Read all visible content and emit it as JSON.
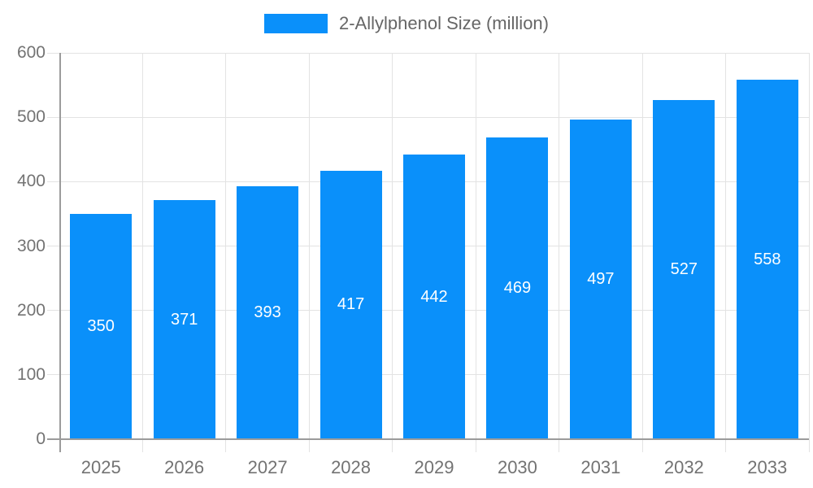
{
  "chart_data": {
    "type": "bar",
    "title": "",
    "legend": "2-Allylphenol Size (million)",
    "legend_position": "top",
    "categories": [
      "2025",
      "2026",
      "2027",
      "2028",
      "2029",
      "2030",
      "2031",
      "2032",
      "2033"
    ],
    "values": [
      350,
      371,
      393,
      417,
      442,
      469,
      497,
      527,
      558
    ],
    "ylim": [
      0,
      600
    ],
    "yticks": [
      0,
      100,
      200,
      300,
      400,
      500,
      600
    ],
    "grid": true,
    "xlabel": "",
    "ylabel": "",
    "colors": {
      "bar": "#0a90fa",
      "value_label": "#ffffff",
      "gridline": "#e3e3e3",
      "axis_line": "#9b9b9b",
      "tick_text": "#737373",
      "legend_text": "#666666"
    }
  }
}
